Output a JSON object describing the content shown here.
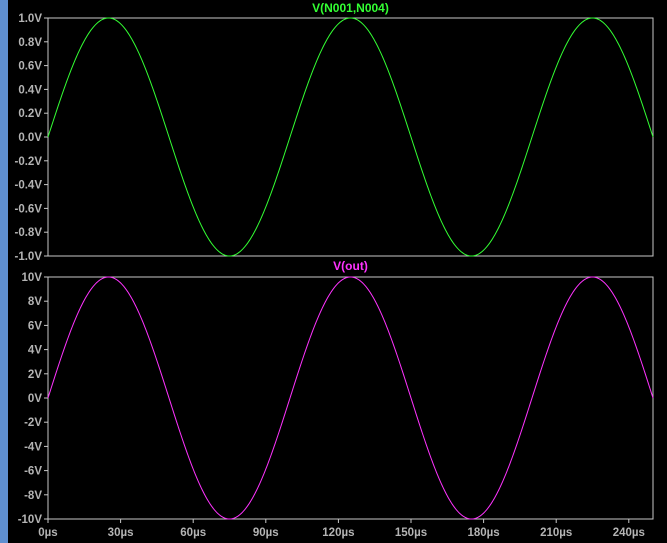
{
  "chart_data": [
    {
      "type": "line",
      "title": "V(N001,N004)",
      "x": {
        "unit": "µs",
        "range": [
          0,
          250
        ],
        "ticks": []
      },
      "y": {
        "range": [
          -1.0,
          1.0
        ],
        "ticks": [
          1.0,
          0.8,
          0.6,
          0.4,
          0.2,
          0.0,
          -0.2,
          -0.4,
          -0.6,
          -0.8,
          -1.0
        ],
        "tick_labels": [
          "1.0V",
          "0.8V",
          "0.6V",
          "0.4V",
          "0.2V",
          "0.0V",
          "-0.2V",
          "-0.4V",
          "-0.6V",
          "-0.8V",
          "-1.0V"
        ]
      },
      "series": [
        {
          "color": "#33ff33",
          "waveform": "sine",
          "amplitude": 1.0,
          "frequency_khz": 10,
          "phase_deg": 0
        }
      ],
      "grid": false
    },
    {
      "type": "line",
      "title": "V(out)",
      "x": {
        "unit": "µs",
        "range": [
          0,
          250
        ],
        "ticks": [
          0,
          30,
          60,
          90,
          120,
          150,
          180,
          210,
          240
        ],
        "tick_labels": [
          "0µs",
          "30µs",
          "60µs",
          "90µs",
          "120µs",
          "150µs",
          "180µs",
          "210µs",
          "240µs"
        ]
      },
      "y": {
        "range": [
          -10,
          10
        ],
        "ticks": [
          10,
          8,
          6,
          4,
          2,
          0,
          -2,
          -4,
          -6,
          -8,
          -10
        ],
        "tick_labels": [
          "10V",
          "8V",
          "6V",
          "4V",
          "2V",
          "0V",
          "-2V",
          "-4V",
          "-6V",
          "-8V",
          "-10V"
        ]
      },
      "series": [
        {
          "color": "#ff33ff",
          "waveform": "sine",
          "amplitude": 10,
          "frequency_khz": 10,
          "phase_deg": 0
        }
      ],
      "grid": false
    }
  ]
}
